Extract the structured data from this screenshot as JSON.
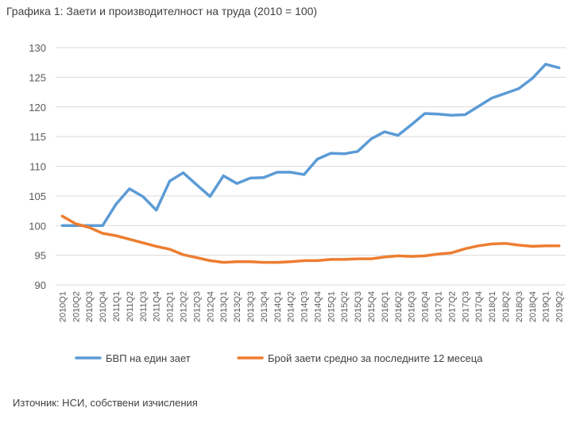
{
  "title": "Графика 1: Заети и производителност на труда (2010 = 100)",
  "source": "Източник: НСИ, собствени изчисления",
  "chart_data": {
    "type": "line",
    "x": [
      "2010Q1",
      "2010Q2",
      "2010Q3",
      "2010Q4",
      "2011Q1",
      "2011Q2",
      "2011Q3",
      "2011Q4",
      "2012Q1",
      "2012Q2",
      "2012Q3",
      "2012Q4",
      "2013Q1",
      "2013Q2",
      "2013Q3",
      "2013Q4",
      "2014Q1",
      "2014Q2",
      "2014Q3",
      "2014Q4",
      "2015Q1",
      "2015Q2",
      "2015Q3",
      "2015Q4",
      "2016Q1",
      "2016Q2",
      "2016Q3",
      "2016Q4",
      "2017Q1",
      "2017Q2",
      "2017Q3",
      "2017Q4",
      "2018Q1",
      "2018Q2",
      "2018Q3",
      "2018Q4",
      "2019Q1",
      "2019Q2"
    ],
    "ylim": [
      90,
      130
    ],
    "yticks": [
      90,
      95,
      100,
      105,
      110,
      115,
      120,
      125,
      130
    ],
    "grid": true,
    "legend_position": "bottom",
    "series": [
      {
        "name": "БВП на един зает",
        "color": "#5B9BD5",
        "values": [
          100,
          100,
          100,
          100,
          103.6,
          106.2,
          104.9,
          102.6,
          107.5,
          108.9,
          106.9,
          104.9,
          108.4,
          107.1,
          108.0,
          108.1,
          109.0,
          109.0,
          108.6,
          111.2,
          112.2,
          112.1,
          112.5,
          114.6,
          115.8,
          115.2,
          117.0,
          118.9,
          118.8,
          118.6,
          118.7,
          120.1,
          121.5,
          122.3,
          123.1,
          124.8,
          127.2,
          126.6
        ]
      },
      {
        "name": "Брой заети средно за последните 12 месеца",
        "color": "#ED7D31",
        "values": [
          101.6,
          100.3,
          99.7,
          98.7,
          98.3,
          97.7,
          97.1,
          96.5,
          96.0,
          95.1,
          94.6,
          94.1,
          93.8,
          93.9,
          93.9,
          93.8,
          93.8,
          93.9,
          94.1,
          94.1,
          94.3,
          94.3,
          94.4,
          94.4,
          94.7,
          94.9,
          94.8,
          94.9,
          95.2,
          95.4,
          96.1,
          96.6,
          96.9,
          97.0,
          96.7,
          96.5,
          96.6,
          96.6
        ]
      }
    ]
  }
}
